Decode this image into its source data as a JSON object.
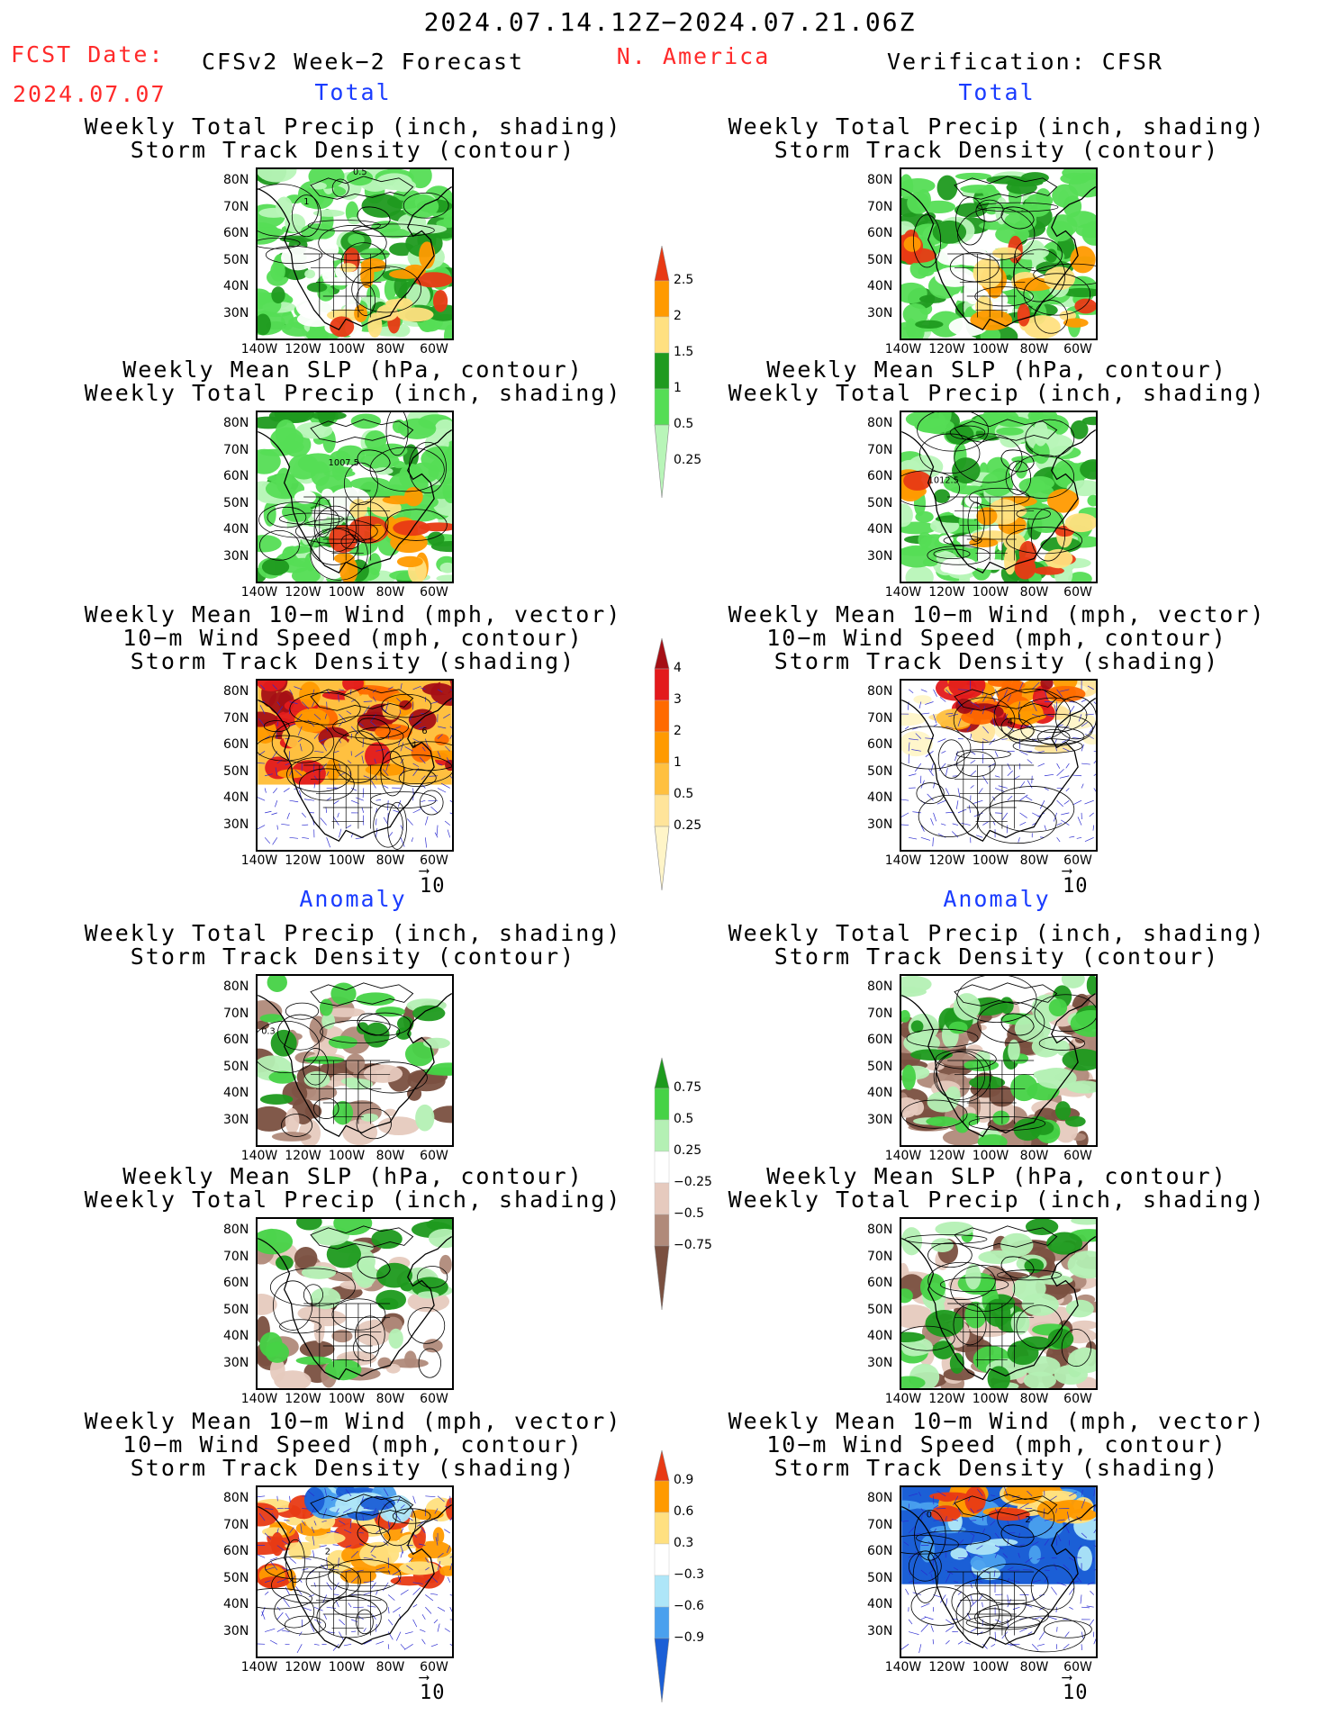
{
  "header": {
    "date_range": "2024.07.14.12Z−2024.07.21.06Z",
    "fcst_label": "FCST Date:",
    "fcst_date": "2024.07.07",
    "forecast_name": "CFSv2 Week−2 Forecast",
    "region": "N. America",
    "verification": "Verification: CFSR"
  },
  "sections": {
    "total": "Total",
    "anomaly": "Anomaly"
  },
  "titles": {
    "precip_storm": [
      "Weekly Total Precip (inch, shading)",
      "Storm Track Density (contour)"
    ],
    "slp_precip": [
      "Weekly Mean SLP (hPa, contour)",
      "Weekly Total Precip (inch, shading)"
    ],
    "wind_storm": [
      "Weekly Mean 10−m Wind (mph, vector)",
      "10−m Wind Speed (mph, contour)",
      "Storm Track Density (shading)"
    ]
  },
  "axes": {
    "lat_ticks": [
      "80N",
      "70N",
      "60N",
      "50N",
      "40N",
      "30N"
    ],
    "lon_ticks": [
      "140W",
      "120W",
      "100W",
      "80W",
      "60W"
    ]
  },
  "map_labels": {
    "fc_precip_contour": "0.5",
    "fc_precip_contour2": "1",
    "fc_slp": "1007.5",
    "ver_slp": "1012.5",
    "fc_wind_a": "4",
    "fc_wind_b": "6",
    "ver_wind": "4",
    "fc_anom_precip": "0.3",
    "fc_anom_wind": "2",
    "ver_anom_wind_a": "0",
    "ver_anom_wind_b": "2"
  },
  "vector_ref": "10",
  "colorbars": {
    "precip_total": {
      "labels": [
        "2.5",
        "2",
        "1.5",
        "1",
        "0.5",
        "0.25"
      ],
      "colors": [
        "#e83a14",
        "#ff9a00",
        "#ffe080",
        "#1f9a1f",
        "#55dd55",
        "#b8f5b8"
      ]
    },
    "storm_total": {
      "labels": [
        "4",
        "3",
        "2",
        "1",
        "0.5",
        "0.25"
      ],
      "colors": [
        "#a50f15",
        "#e31a1c",
        "#ff6a00",
        "#ff9a00",
        "#ffc040",
        "#ffe49a",
        "#fff5c8"
      ]
    },
    "precip_anom": {
      "labels": [
        "0.75",
        "0.5",
        "0.25",
        "−0.25",
        "−0.5",
        "−0.75"
      ],
      "colors": [
        "#1e9a1e",
        "#46d246",
        "#b4f0b4",
        "#ffffff",
        "#e6cabe",
        "#b08a7a",
        "#7a5040"
      ]
    },
    "storm_anom": {
      "labels": [
        "0.9",
        "0.6",
        "0.3",
        "−0.3",
        "−0.6",
        "−0.9"
      ],
      "colors": [
        "#e83a14",
        "#ff9a00",
        "#ffe080",
        "#ffffff",
        "#aee6f8",
        "#4aa0ee",
        "#1b5fd6"
      ]
    }
  }
}
